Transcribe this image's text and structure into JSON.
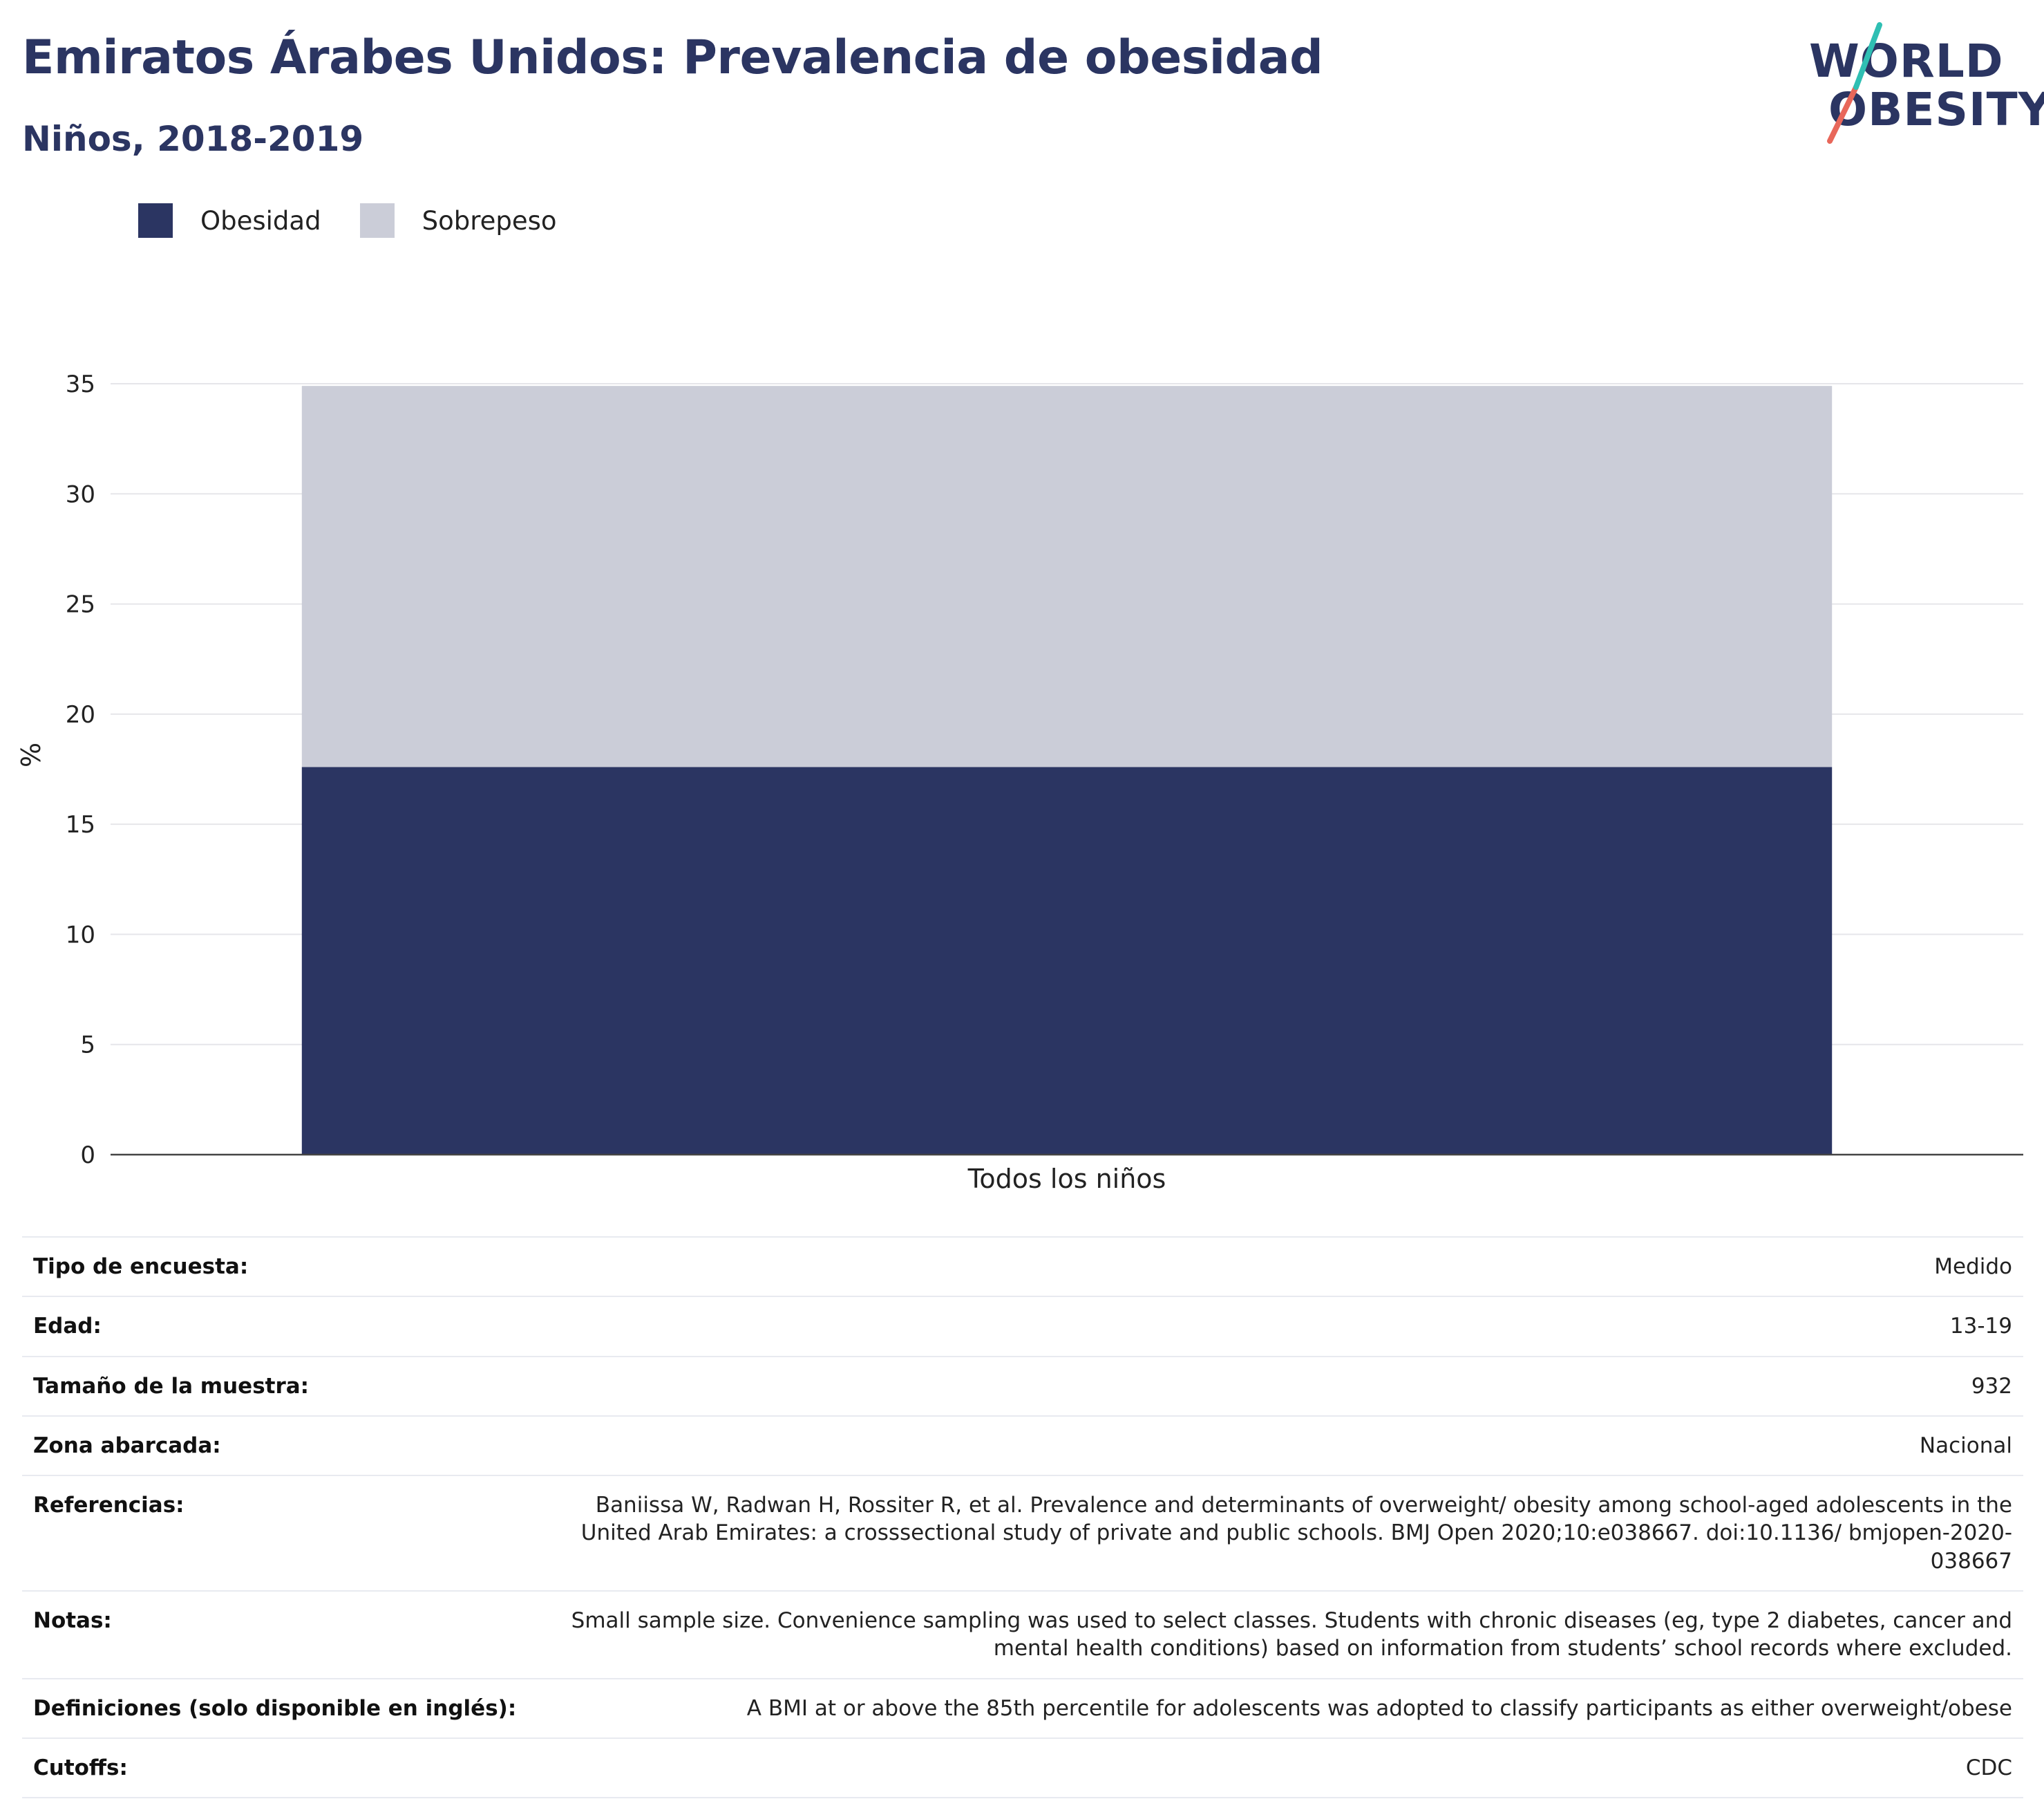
{
  "header": {
    "title": "Emiratos Árabes Unidos: Prevalencia de obesidad",
    "subtitle": "Niños, 2018-2019"
  },
  "logo": {
    "line1": "WORLD",
    "line2": "OBESITY",
    "colors": {
      "navy": "#2b3562",
      "teal": "#2fbfb3",
      "coral": "#e8675a"
    }
  },
  "legend": [
    {
      "label": "Obesidad",
      "color": "#2b3562"
    },
    {
      "label": "Sobrepeso",
      "color": "#cbcdd8"
    }
  ],
  "chart_data": {
    "type": "bar",
    "stacked": true,
    "categories": [
      "Todos los niños"
    ],
    "series": [
      {
        "name": "Obesidad",
        "values": [
          17.6
        ],
        "color": "#2b3562"
      },
      {
        "name": "Sobrepeso",
        "values": [
          17.3
        ],
        "color": "#cbcdd8"
      }
    ],
    "ylabel": "%",
    "xlabel": "",
    "ylim": [
      0,
      35
    ],
    "yticks": [
      0,
      5,
      10,
      15,
      20,
      25,
      30,
      35
    ],
    "grid": true,
    "legend_position": "top-left"
  },
  "info_table": [
    {
      "label": "Tipo de encuesta:",
      "value": "Medido"
    },
    {
      "label": "Edad:",
      "value": "13-19"
    },
    {
      "label": "Tamaño de la muestra:",
      "value": "932"
    },
    {
      "label": "Zona abarcada:",
      "value": "Nacional"
    },
    {
      "label": "Referencias:",
      "value": "Baniissa W, Radwan H, Rossiter R, et al. Prevalence and determinants of overweight/ obesity among school-aged adolescents in the United Arab Emirates: a crosssectional study of private and public schools. BMJ Open 2020;10:e038667. doi:10.1136/ bmjopen-2020-038667"
    },
    {
      "label": "Notas:",
      "value": "Small sample size. Convenience sampling was used to select classes. Students with chronic diseases (eg, type 2 diabetes, cancer and mental health conditions) based on information from students’ school records where excluded."
    },
    {
      "label": "Definiciones (solo disponible en inglés):",
      "value": "A BMI at or above the 85th percentile for adolescents was adopted to classify participants as either overweight/obese"
    },
    {
      "label": "Cutoffs:",
      "value": "CDC"
    }
  ]
}
